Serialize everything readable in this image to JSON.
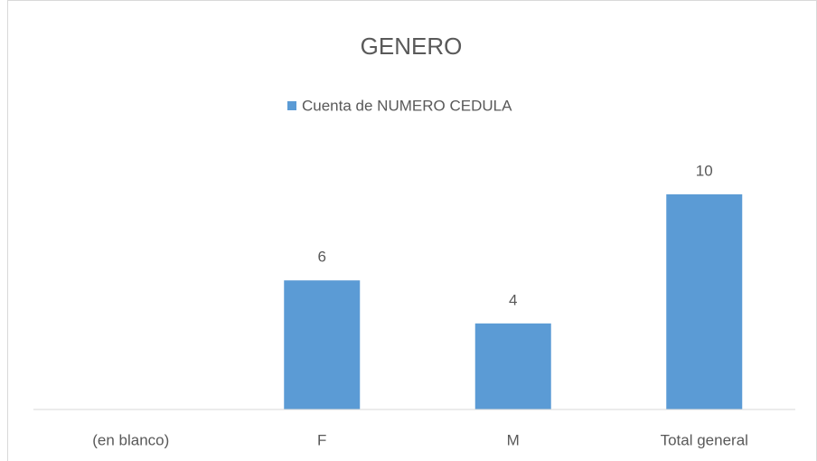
{
  "chart_data": {
    "type": "bar",
    "title": "GENERO",
    "categories": [
      "(en blanco)",
      "F",
      "M",
      "Total general"
    ],
    "series": [
      {
        "name": "Cuenta de NUMERO CEDULA",
        "color": "#5b9bd5",
        "values": [
          null,
          6,
          4,
          10
        ]
      }
    ]
  }
}
